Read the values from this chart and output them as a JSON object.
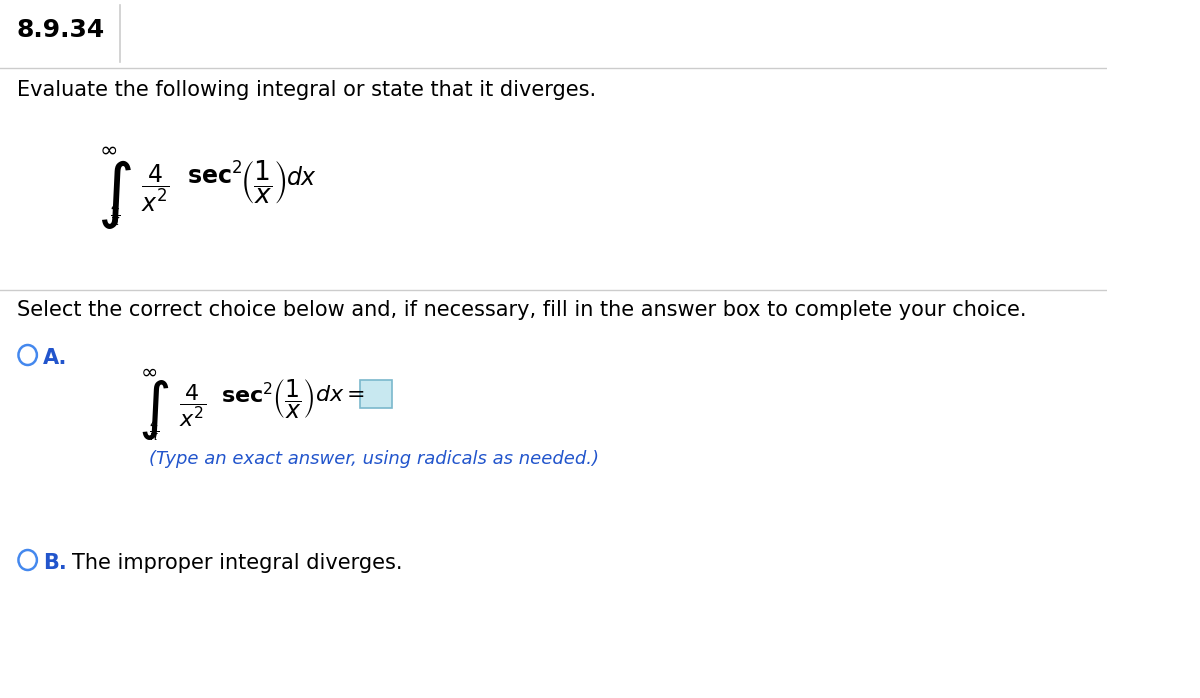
{
  "title": "8.9.34",
  "problem_text": "Evaluate the following integral or state that it diverges.",
  "select_text": "Select the correct choice below and, if necessary, fill in the answer box to complete your choice.",
  "choice_A_label": "A.",
  "choice_A_hint": "(Type an exact answer, using radicals as needed.)",
  "choice_B_label": "B.",
  "choice_B_text": "The improper integral diverges.",
  "bg_color": "#ffffff",
  "text_color": "#000000",
  "blue_color": "#2255cc",
  "circle_color": "#4488ee",
  "box_fill_color": "#c8e8f0",
  "box_edge_color": "#7ab8cc",
  "divider_color": "#cccccc",
  "title_fontsize": 18,
  "body_fontsize": 15,
  "math_fontsize": 17,
  "small_fontsize": 13
}
